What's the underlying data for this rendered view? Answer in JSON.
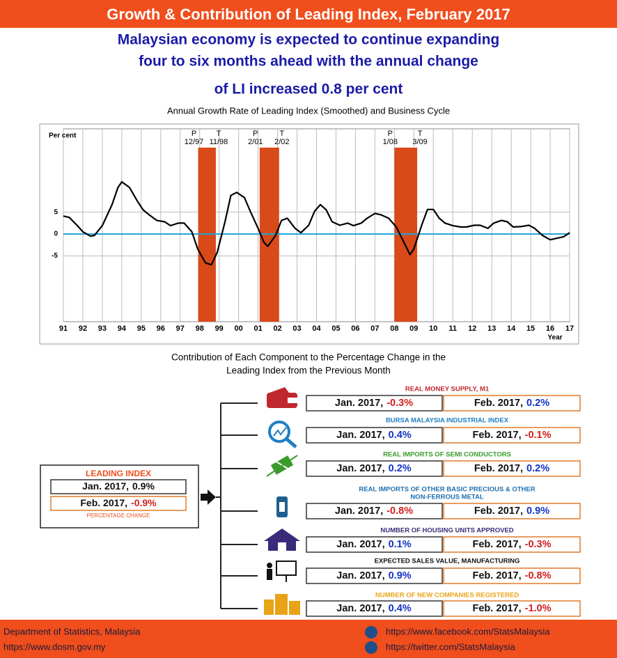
{
  "header": {
    "title": "Growth & Contribution of Leading Index, February 2017",
    "subtitle_lines": [
      "Malaysian economy is expected to continue expanding",
      "four to six months ahead with the annual change",
      "of LI increased 0.8 per cent"
    ]
  },
  "chart_data": {
    "type": "line",
    "title": "Annual Growth Rate of Leading Index (Smoothed) and Business Cycle",
    "ylabel": "Per cent",
    "xlabel": "Year",
    "x": [
      1991.0,
      1991.3,
      1991.7,
      1992.0,
      1992.4,
      1992.6,
      1993.0,
      1993.5,
      1993.8,
      1994.0,
      1994.4,
      1994.8,
      1995.1,
      1995.4,
      1995.8,
      1996.2,
      1996.5,
      1996.9,
      1997.2,
      1997.6,
      1997.9,
      1998.3,
      1998.6,
      1998.9,
      1999.3,
      1999.6,
      1999.9,
      2000.3,
      2000.6,
      2001.0,
      2001.3,
      2001.5,
      2001.9,
      2002.2,
      2002.5,
      2002.9,
      2003.2,
      2003.6,
      2003.9,
      2004.2,
      2004.5,
      2004.8,
      2005.2,
      2005.6,
      2005.9,
      2006.3,
      2006.6,
      2007.0,
      2007.3,
      2007.7,
      2008.1,
      2008.4,
      2008.8,
      2009.0,
      2009.4,
      2009.7,
      2010.0,
      2010.3,
      2010.6,
      2011.0,
      2011.4,
      2011.7,
      2012.1,
      2012.4,
      2012.8,
      2013.1,
      2013.5,
      2013.8,
      2014.1,
      2014.5,
      2014.9,
      2015.2,
      2015.6,
      2016.0,
      2016.4,
      2016.7,
      2017.0
    ],
    "series": [
      {
        "color": "#000000",
        "values": [
          4.1,
          3.8,
          2.0,
          0.5,
          -0.5,
          -0.3,
          1.9,
          6.7,
          10.6,
          11.9,
          10.6,
          7.5,
          5.5,
          4.4,
          3.1,
          2.8,
          1.9,
          2.5,
          2.5,
          0.5,
          -3.4,
          -6.6,
          -7.0,
          -4.2,
          2.8,
          8.8,
          9.5,
          8.3,
          5.2,
          1.3,
          -1.9,
          -2.8,
          -0.3,
          3.1,
          3.6,
          1.3,
          0.3,
          2.0,
          5.2,
          6.7,
          5.5,
          2.8,
          2.0,
          2.5,
          1.9,
          2.5,
          3.6,
          4.7,
          4.4,
          3.6,
          1.6,
          -1.1,
          -4.7,
          -3.4,
          2.0,
          5.6,
          5.6,
          3.6,
          2.5,
          1.9,
          1.6,
          1.6,
          2.0,
          2.0,
          1.3,
          2.5,
          3.1,
          2.8,
          1.6,
          1.7,
          2.0,
          1.3,
          -0.3,
          -1.3,
          -0.9,
          -0.6,
          0.3
        ]
      }
    ],
    "reference_line": {
      "value": 0,
      "color": "#1ca3d8"
    },
    "xlim": [
      1991,
      2017
    ],
    "xticks": [
      {
        "value": 1991,
        "label": "91"
      },
      {
        "value": 1992,
        "label": "92"
      },
      {
        "value": 1993,
        "label": "93"
      },
      {
        "value": 1994,
        "label": "94"
      },
      {
        "value": 1995,
        "label": "95"
      },
      {
        "value": 1996,
        "label": "96"
      },
      {
        "value": 1997,
        "label": "97"
      },
      {
        "value": 1998,
        "label": "98"
      },
      {
        "value": 1999,
        "label": "99"
      },
      {
        "value": 2000,
        "label": "00"
      },
      {
        "value": 2001,
        "label": "01"
      },
      {
        "value": 2002,
        "label": "02"
      },
      {
        "value": 2003,
        "label": "03"
      },
      {
        "value": 2004,
        "label": "04"
      },
      {
        "value": 2005,
        "label": "05"
      },
      {
        "value": 2006,
        "label": "06"
      },
      {
        "value": 2007,
        "label": "07"
      },
      {
        "value": 2008,
        "label": "08"
      },
      {
        "value": 2009,
        "label": "09"
      },
      {
        "value": 2010,
        "label": "10"
      },
      {
        "value": 2011,
        "label": "11"
      },
      {
        "value": 2012,
        "label": "12"
      },
      {
        "value": 2013,
        "label": "13"
      },
      {
        "value": 2014,
        "label": "14"
      },
      {
        "value": 2015,
        "label": "15"
      },
      {
        "value": 2016,
        "label": "16"
      },
      {
        "value": 2017,
        "label": "17"
      }
    ],
    "ylim": [
      -20,
      24
    ],
    "yticks": [
      -5,
      0,
      5
    ],
    "grid": true,
    "recessions": [
      {
        "peak_label": "P",
        "peak_date": "12/97",
        "trough_label": "T",
        "trough_date": "11/98",
        "start": 1997.92,
        "end": 1998.83,
        "color": "#d94a1a"
      },
      {
        "peak_label": "P",
        "peak_date": "2/01",
        "trough_label": "T",
        "trough_date": "2/02",
        "start": 2001.08,
        "end": 2002.08,
        "color": "#d94a1a"
      },
      {
        "peak_label": "P",
        "peak_date": "1/08",
        "trough_label": "T",
        "trough_date": "3/09",
        "start": 2008.0,
        "end": 2009.17,
        "color": "#d94a1a"
      }
    ]
  },
  "contribution": {
    "title_lines": [
      "Contribution of Each Component to the Percentage Change in the",
      "Leading Index from the Previous Month"
    ],
    "leading_index": {
      "title": "LEADING INDEX",
      "jan_label": "Jan. 2017,",
      "jan_value": "0.9%",
      "feb_label": "Feb. 2017,",
      "feb_value": "-0.9%",
      "note": "PERCENTAGE CHANGE"
    },
    "components": [
      {
        "name_lines": [
          "REAL MONEY SUPPLY, M1"
        ],
        "color": "#c0282d",
        "jan_label": "Jan. 2017,",
        "jan_value": "-0.3%",
        "feb_label": "Feb. 2017,",
        "feb_value": "0.2%"
      },
      {
        "name_lines": [
          "BURSA MALAYSIA INDUSTRIAL INDEX"
        ],
        "color": "#1f7fc4",
        "jan_label": "Jan. 2017,",
        "jan_value": "0.4%",
        "feb_label": "Feb. 2017,",
        "feb_value": "-0.1%"
      },
      {
        "name_lines": [
          "REAL IMPORTS OF SEMI CONDUCTORS"
        ],
        "color": "#3a9a2c",
        "jan_label": "Jan. 2017,",
        "jan_value": "0.2%",
        "feb_label": "Feb. 2017,",
        "feb_value": "0.2%"
      },
      {
        "name_lines": [
          "REAL IMPORTS OF OTHER BASIC PRECIOUS & OTHER",
          "NON-FERROUS METAL"
        ],
        "color": "#1f6fae",
        "jan_label": "Jan. 2017,",
        "jan_value": "-0.8%",
        "feb_label": "Feb. 2017,",
        "feb_value": "0.9%"
      },
      {
        "name_lines": [
          "NUMBER OF HOUSING UNITS APPROVED"
        ],
        "color": "#3a2a7a",
        "jan_label": "Jan. 2017,",
        "jan_value": "0.1%",
        "feb_label": "Feb. 2017,",
        "feb_value": "-0.3%"
      },
      {
        "name_lines": [
          "EXPECTED SALES VALUE, MANUFACTURING"
        ],
        "color": "#111111",
        "jan_label": "Jan. 2017,",
        "jan_value": "0.9%",
        "feb_label": "Feb. 2017,",
        "feb_value": "-0.8%"
      },
      {
        "name_lines": [
          "NUMBER OF NEW COMPANIES REGISTERED"
        ],
        "color": "#e8a317",
        "jan_label": "Jan. 2017,",
        "jan_value": "0.4%",
        "feb_label": "Feb. 2017,",
        "feb_value": "-1.0%"
      }
    ]
  },
  "footer": {
    "left": [
      "Department of Statistics, Malaysia",
      "https://www.dosm.gov.my"
    ],
    "right": [
      "https://www.facebook.com/StatsMalaysia",
      "https://twitter.com/StatsMalaysia"
    ]
  }
}
